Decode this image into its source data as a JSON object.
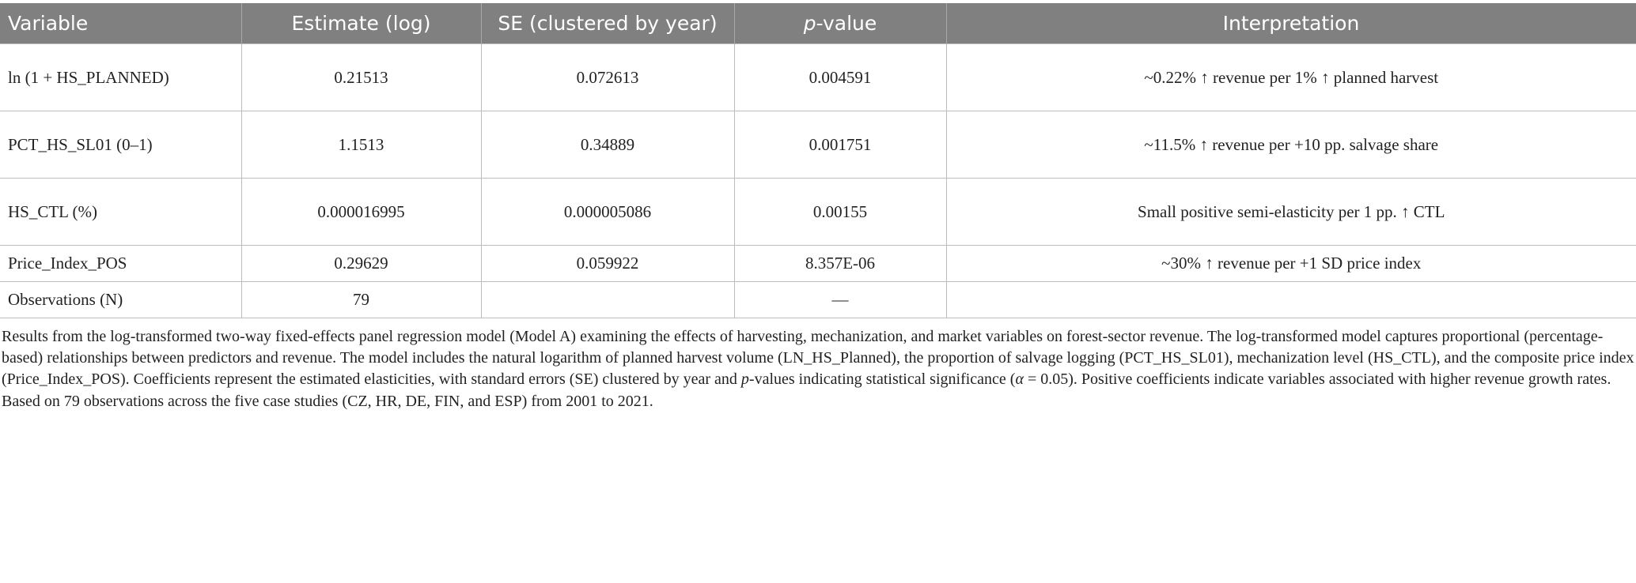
{
  "table": {
    "headers": [
      "Variable",
      "Estimate (log)",
      "SE (clustered by year)",
      "p",
      "-value",
      "Interpretation"
    ],
    "rows": [
      [
        "ln (1 + HS_PLANNED)",
        "0.21513",
        "0.072613",
        "0.004591",
        "~0.22% ↑ revenue per 1% ↑ planned harvest"
      ],
      [
        "PCT_HS_SL01 (0–1)",
        "1.1513",
        "0.34889",
        "0.001751",
        "~11.5% ↑ revenue per +10 pp. salvage share"
      ],
      [
        "HS_CTL (%)",
        "0.000016995",
        "0.000005086",
        "0.00155",
        "Small positive semi-elasticity per 1 pp. ↑ CTL"
      ],
      [
        "Price_Index_POS",
        "0.29629",
        "0.059922",
        "8.357E-06",
        "~30% ↑ revenue per +1 SD price index"
      ],
      [
        "Observations (N)",
        "79",
        "",
        "—",
        ""
      ]
    ]
  },
  "caption": {
    "part1": "Results from the log-transformed two-way fixed-effects panel regression model (Model A) examining the effects of harvesting, mechanization, and market variables on forest-sector revenue. The log-transformed model captures proportional (percentage-based) relationships between predictors and revenue. The model includes the natural logarithm of planned harvest volume (LN_HS_Planned), the proportion of salvage logging (PCT_HS_SL01), mechanization level (HS_CTL), and the composite price index (Price_Index_POS). Coefficients represent the estimated elasticities, with standard errors (SE) clustered by year and ",
    "p": "p",
    "part2": "-values indicating statistical significance (",
    "alpha": "α",
    "part3": " = 0.05). Positive coefficients indicate variables associated with higher revenue growth rates. Based on 79 observations across the five case studies (CZ, HR, DE, FIN, and ESP) from 2001 to 2021."
  },
  "colors": {
    "header_bg": "#808080",
    "header_text": "#ffffff",
    "border": "#bdbdbd"
  }
}
